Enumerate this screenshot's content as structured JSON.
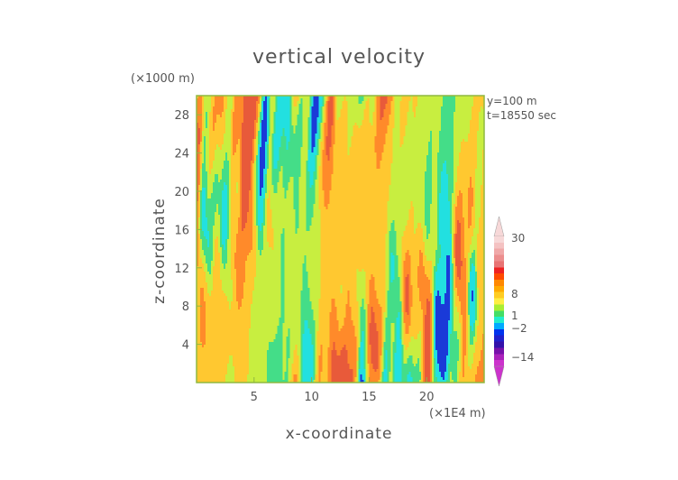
{
  "chart_data": {
    "type": "heatmap",
    "title": "vertical velocity",
    "xlabel": "x-coordinate",
    "ylabel": "z-coordinate",
    "x_unit": "(×1E4 m)",
    "y_unit": "(×1000 m)",
    "annotations": [
      "y=100 m",
      "t=18550 sec"
    ],
    "xlim": [
      0,
      25
    ],
    "ylim": [
      0,
      30
    ],
    "xticks": [
      5,
      10,
      15,
      20
    ],
    "yticks": [
      4,
      8,
      12,
      16,
      20,
      24,
      28
    ],
    "colorbar": {
      "tick_labels": [
        "30",
        "8",
        "1",
        "−2",
        "−14"
      ],
      "tick_values": [
        30,
        8,
        1,
        -2,
        -14
      ],
      "colors_top_to_bottom": [
        "#f7d8d8",
        "#f4c2c2",
        "#f0a8a8",
        "#ec8e8e",
        "#e87474",
        "#ee2222",
        "#ff4a00",
        "#ff8800",
        "#ffaa00",
        "#ffcc22",
        "#ffee44",
        "#aaee33",
        "#44dd66",
        "#22eecc",
        "#00aaff",
        "#0033ee",
        "#2020cc",
        "#3311aa",
        "#7711aa",
        "#aa22bb",
        "#cc33cc"
      ],
      "extend": "both"
    },
    "field_colors": {
      "strong_up": "#e85a3a",
      "up": "#ff8a2a",
      "weak_up": "#ffc830",
      "near_zero": "#c8ee40",
      "weak_down": "#44dd88",
      "down": "#22e0e0",
      "strong_down": "#1a3ad8"
    }
  }
}
